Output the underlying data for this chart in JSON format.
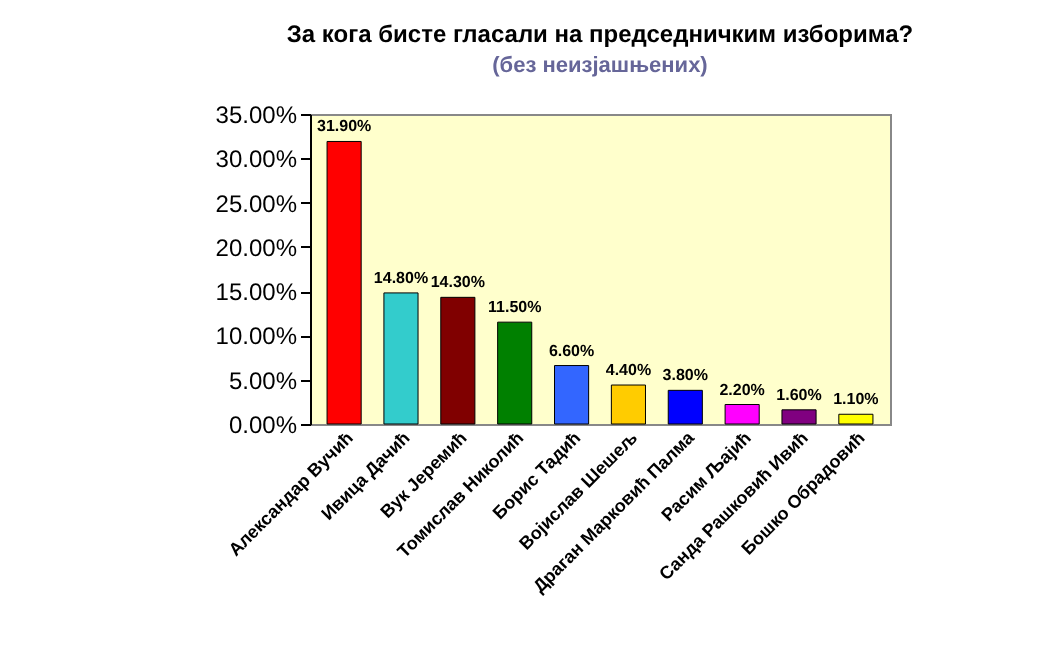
{
  "chart_data": {
    "type": "bar",
    "title": "За кога бисте гласали на председничким изборима?",
    "subtitle": "(без неизјашњених)",
    "categories": [
      "Александар Вучић",
      "Ивица Дачић",
      "Вук Јеремић",
      "Томислав Николић",
      "Борис Тадић",
      "Војислав Шешељ",
      "Драган Марковић Палма",
      "Расим Љајић",
      "Санда Рашковић Ивић",
      "Бошко Обрадовић"
    ],
    "values": [
      31.9,
      14.8,
      14.3,
      11.5,
      6.6,
      4.4,
      3.8,
      2.2,
      1.6,
      1.1
    ],
    "value_labels": [
      "31.90%",
      "14.80%",
      "14.30%",
      "11.50%",
      "6.60%",
      "4.40%",
      "3.80%",
      "2.20%",
      "1.60%",
      "1.10%"
    ],
    "colors": [
      "#ff0000",
      "#33cccc",
      "#800000",
      "#008000",
      "#3366ff",
      "#ffcc00",
      "#0000ff",
      "#ff00ff",
      "#800080",
      "#ffff00"
    ],
    "ylim": [
      0,
      35
    ],
    "yticks": [
      {
        "value": 0,
        "label": "0.00%"
      },
      {
        "value": 5,
        "label": "5.00%"
      },
      {
        "value": 10,
        "label": "10.00%"
      },
      {
        "value": 15,
        "label": "15.00%"
      },
      {
        "value": 20,
        "label": "20.00%"
      },
      {
        "value": 25,
        "label": "25.00%"
      },
      {
        "value": 30,
        "label": "30.00%"
      },
      {
        "value": 35,
        "label": "35.00%"
      }
    ]
  }
}
